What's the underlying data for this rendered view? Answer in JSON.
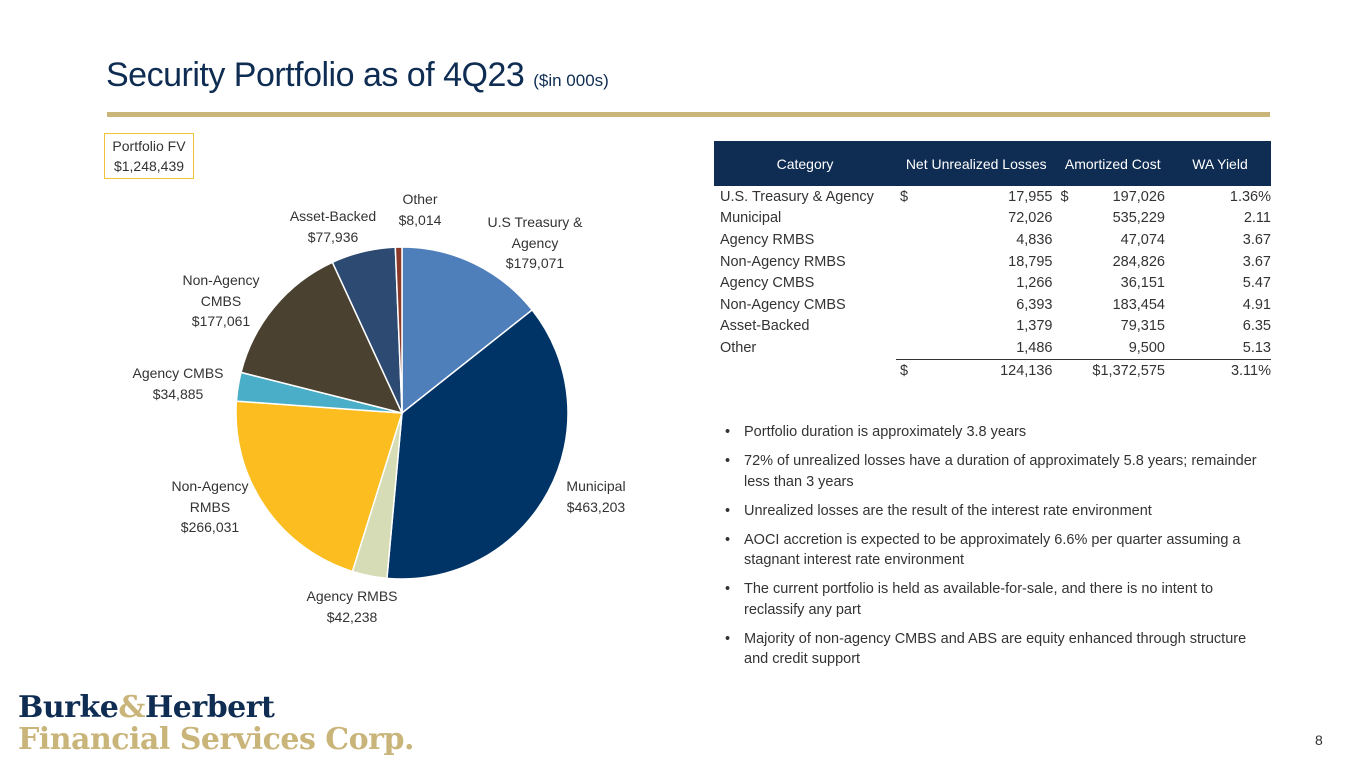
{
  "page": {
    "title": "Security Portfolio as of 4Q23",
    "title_suffix": "($in 000s)",
    "page_number": "8"
  },
  "portfolio_fv": {
    "label": "Portfolio FV",
    "value": "$1,248,439"
  },
  "chart_data": {
    "type": "pie",
    "title": "",
    "start_angle_deg": 0,
    "direction": "clockwise",
    "slices": [
      {
        "name": "U.S Treasury & Agency",
        "label_lines": [
          "U.S Treasury &",
          "Agency"
        ],
        "value": 179071,
        "value_label": "$179,071",
        "color": "#4e7fba"
      },
      {
        "name": "Municipal",
        "label_lines": [
          "Municipal"
        ],
        "value": 463203,
        "value_label": "$463,203",
        "color": "#003366"
      },
      {
        "name": "Agency RMBS",
        "label_lines": [
          "Agency RMBS"
        ],
        "value": 42238,
        "value_label": "$42,238",
        "color": "#d6dcb6"
      },
      {
        "name": "Non-Agency RMBS",
        "label_lines": [
          "Non-Agency",
          "RMBS"
        ],
        "value": 266031,
        "value_label": "$266,031",
        "color": "#fbbd1f"
      },
      {
        "name": "Agency CMBS",
        "label_lines": [
          "Agency CMBS"
        ],
        "value": 34885,
        "value_label": "$34,885",
        "color": "#4aaec8"
      },
      {
        "name": "Non-Agency CMBS",
        "label_lines": [
          "Non-Agency",
          "CMBS"
        ],
        "value": 177061,
        "value_label": "$177,061",
        "color": "#4a4130"
      },
      {
        "name": "Asset-Backed",
        "label_lines": [
          "Asset-Backed"
        ],
        "value": 77936,
        "value_label": "$77,936",
        "color": "#2d4a73"
      },
      {
        "name": "Other",
        "label_lines": [
          "Other"
        ],
        "value": 8014,
        "value_label": "$8,014",
        "color": "#8b3a2a"
      }
    ]
  },
  "table": {
    "headers": [
      "Category",
      "Net Unrealized Losses",
      "Amortized Cost",
      "WA Yield"
    ],
    "rows": [
      {
        "category": "U.S. Treasury & Agency",
        "cur1": "$",
        "losses": "17,955",
        "cur2": "$",
        "cost": "197,026",
        "yield": "1.36%"
      },
      {
        "category": "Municipal",
        "cur1": "",
        "losses": "72,026",
        "cur2": "",
        "cost": "535,229",
        "yield": "2.11"
      },
      {
        "category": "Agency RMBS",
        "cur1": "",
        "losses": "4,836",
        "cur2": "",
        "cost": "47,074",
        "yield": "3.67"
      },
      {
        "category": "Non-Agency RMBS",
        "cur1": "",
        "losses": "18,795",
        "cur2": "",
        "cost": "284,826",
        "yield": "3.67"
      },
      {
        "category": "Agency CMBS",
        "cur1": "",
        "losses": "1,266",
        "cur2": "",
        "cost": "36,151",
        "yield": "5.47"
      },
      {
        "category": "Non-Agency CMBS",
        "cur1": "",
        "losses": "6,393",
        "cur2": "",
        "cost": "183,454",
        "yield": "4.91"
      },
      {
        "category": "Asset-Backed",
        "cur1": "",
        "losses": "1,379",
        "cur2": "",
        "cost": "79,315",
        "yield": "6.35"
      },
      {
        "category": "Other",
        "cur1": "",
        "losses": "1,486",
        "cur2": "",
        "cost": "9,500",
        "yield": "5.13"
      }
    ],
    "total": {
      "cur1": "$",
      "losses": "124,136",
      "cost": "$1,372,575",
      "yield": "3.11%"
    }
  },
  "bullets": [
    "Portfolio duration is approximately 3.8 years",
    "72% of unrealized losses have a duration of approximately 5.8 years; remainder less than 3 years",
    "Unrealized losses are the result of the interest rate environment",
    "AOCI accretion is expected to be approximately 6.6% per quarter assuming a stagnant interest rate environment",
    "The current portfolio is held as available-for-sale, and there is no intent to reclassify any part",
    "Majority of non-agency CMBS and ABS are equity enhanced through structure and credit support"
  ],
  "logo": {
    "line1_a": "Burke",
    "line1_amp": "&",
    "line1_b": "Herbert",
    "line2": "Financial Services Corp."
  }
}
